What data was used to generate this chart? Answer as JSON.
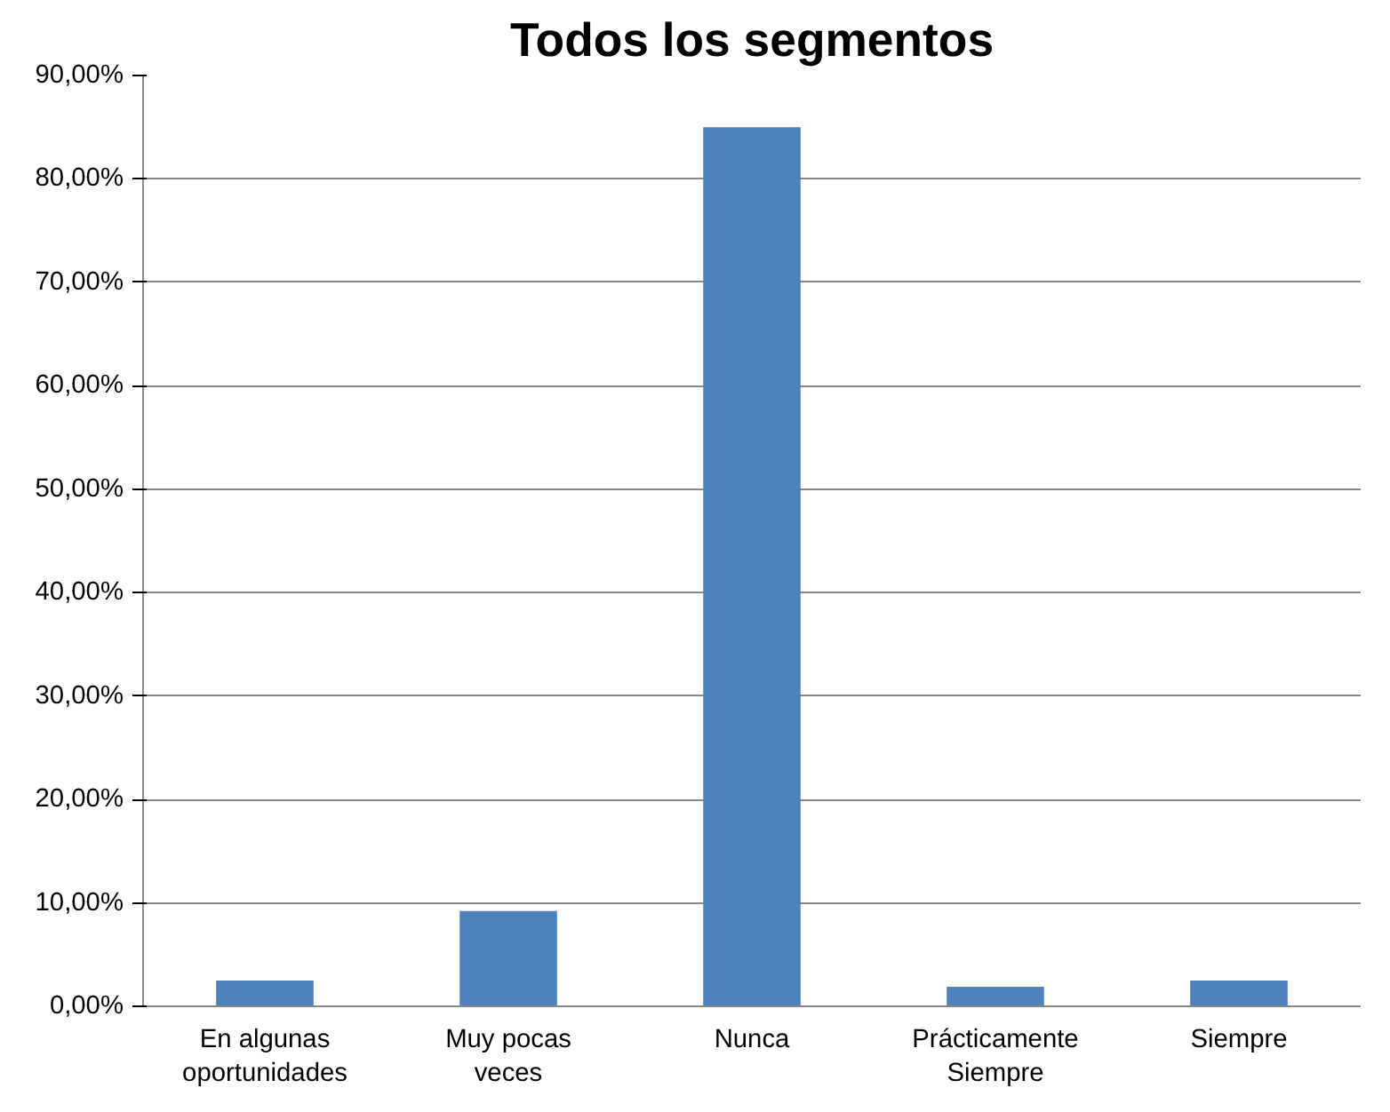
{
  "chart_data": {
    "type": "bar",
    "title": "Todos los segmentos",
    "categories": [
      "En algunas\noportunidades",
      "Muy pocas\nveces",
      "Nunca",
      "Prácticamente\nSiempre",
      "Siempre"
    ],
    "values": [
      2.5,
      9.2,
      85,
      1.9,
      2.5
    ],
    "color": "#4f81bd",
    "ylim": [
      0,
      90
    ],
    "yticks": [
      {
        "value": 0,
        "label": "0,00%"
      },
      {
        "value": 10,
        "label": "10,00%"
      },
      {
        "value": 20,
        "label": "20,00%"
      },
      {
        "value": 30,
        "label": "30,00%"
      },
      {
        "value": 40,
        "label": "40,00%"
      },
      {
        "value": 50,
        "label": "50,00%"
      },
      {
        "value": 60,
        "label": "60,00%"
      },
      {
        "value": 70,
        "label": "70,00%"
      },
      {
        "value": 80,
        "label": "80,00%"
      },
      {
        "value": 90,
        "label": "90,00%"
      }
    ],
    "grid": "y"
  }
}
